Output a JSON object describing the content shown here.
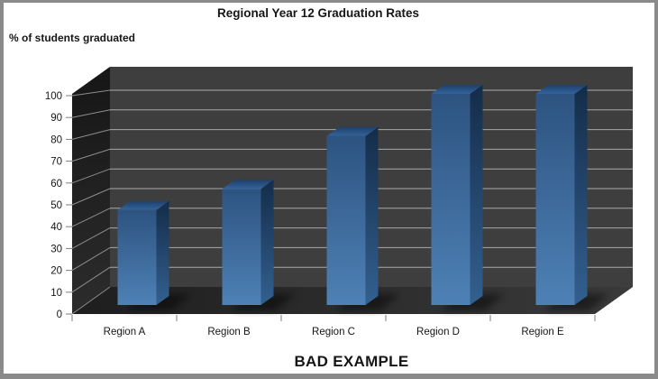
{
  "window": {
    "background": "#ffffff",
    "frame_border": "#8a8a8a"
  },
  "chart": {
    "title": "Regional Year 12 Graduation Rates",
    "y_axis_title": "% of students graduated",
    "caption": "BAD EXAMPLE"
  },
  "chart_data": {
    "type": "bar",
    "subtype": "3d-column",
    "title": "Regional Year 12 Graduation Rates",
    "xlabel": "",
    "ylabel": "% of students graduated",
    "categories": [
      "Region A",
      "Region B",
      "Region C",
      "Region D",
      "Region E"
    ],
    "values": [
      45,
      55,
      80,
      100,
      100
    ],
    "ylim": [
      0,
      100
    ],
    "yticks": [
      0,
      10,
      20,
      30,
      40,
      50,
      60,
      70,
      80,
      90,
      100
    ],
    "grid": true,
    "legend": false,
    "annotation": "BAD EXAMPLE",
    "plot_style": "dark 3d walls and floor, blue 3d columns"
  },
  "colors": {
    "bar_front_top": "#2d5380",
    "bar_front_bottom": "#4e81b6",
    "bar_side_top": "#142c49",
    "bar_side_bottom": "#33608f",
    "bar_top_back": "#1f4068",
    "bar_top_front": "#33639c",
    "back_wall": "#3e3e3e",
    "side_wall_top": "#161616",
    "side_wall_bottom": "#2c2c2c",
    "floor_left": "#1e1e1e",
    "floor_right": "#3a3a3a",
    "gridline_back": "#a9a9a9",
    "gridline_side": "#8c8c8c",
    "tick": "#7d7d7d",
    "text": "#161616",
    "frame_border": "#8a8a8a",
    "background": "#ffffff"
  }
}
